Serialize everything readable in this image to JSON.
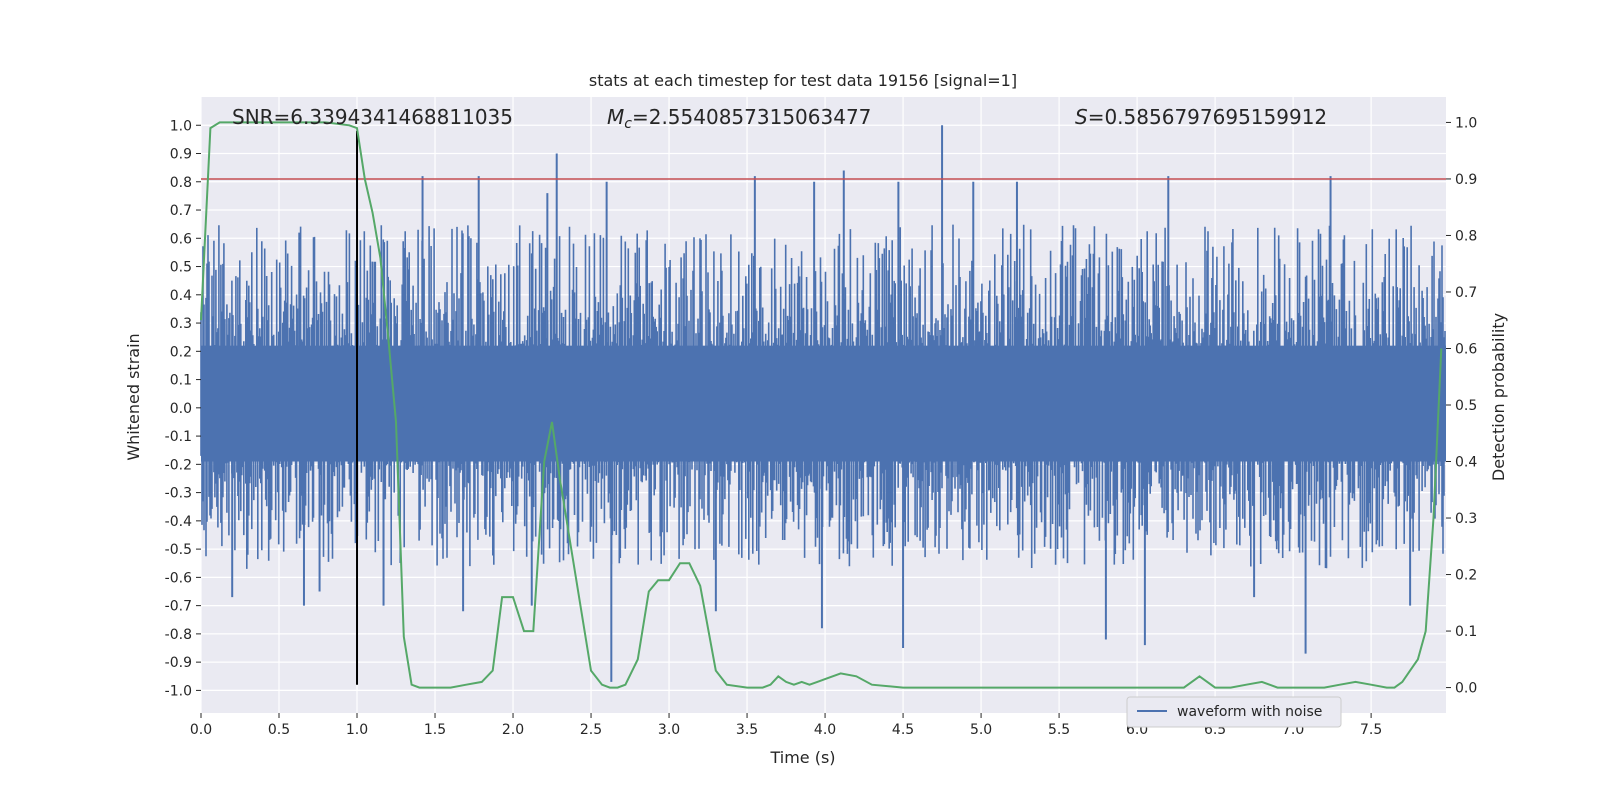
{
  "chart_data": {
    "type": "line",
    "title": "stats at each timestep for test data 19156 [signal=1]",
    "xlabel": "Time (s)",
    "ylabel": "Whitened strain",
    "ylabel_right": "Detection probability",
    "xlim": [
      0.0,
      7.98
    ],
    "ylim": [
      -1.08,
      1.1
    ],
    "ylim_right": [
      -0.045,
      1.045
    ],
    "x_ticks": [
      "0.0",
      "0.5",
      "1.0",
      "1.5",
      "2.0",
      "2.5",
      "3.0",
      "3.5",
      "4.0",
      "4.5",
      "5.0",
      "5.5",
      "6.0",
      "6.5",
      "7.0",
      "7.5"
    ],
    "y_ticks": [
      "-1.0",
      "-0.9",
      "-0.8",
      "-0.7",
      "-0.6",
      "-0.5",
      "-0.4",
      "-0.3",
      "-0.2",
      "-0.1",
      "0.0",
      "0.1",
      "0.2",
      "0.3",
      "0.4",
      "0.5",
      "0.6",
      "0.7",
      "0.8",
      "0.9",
      "1.0"
    ],
    "y_ticks_right": [
      "0.0",
      "0.1",
      "0.2",
      "0.3",
      "0.4",
      "0.5",
      "0.6",
      "0.7",
      "0.8",
      "0.9",
      "1.0"
    ],
    "grid": true,
    "legend_position": "lower-right",
    "annotations": {
      "snr": "SNR=6.3394341468811035",
      "mc_symbol": "M",
      "mc_subscript": "c",
      "mc_value": "=2.5540857315063477",
      "s_symbol": "S",
      "s_value": "=0.5856797695159912"
    },
    "threshold": {
      "y_right": 0.9,
      "color": "#c44e52"
    },
    "marker_line": {
      "x": 1.0,
      "color": "#000000"
    },
    "series": [
      {
        "name": "waveform with noise",
        "axis": "left",
        "color": "#4c72b0",
        "description_values": "dense whitened-strain noise, mostly within -0.4..0.45, peaks up to 1.0 near t=4.75 and down to -0.97 near t=2.63",
        "spikes": [
          [
            0.63,
            0.62
          ],
          [
            1.42,
            0.82
          ],
          [
            1.78,
            0.82
          ],
          [
            2.22,
            0.76
          ],
          [
            2.28,
            0.9
          ],
          [
            2.6,
            0.8
          ],
          [
            3.55,
            0.82
          ],
          [
            3.93,
            0.8
          ],
          [
            4.12,
            0.84
          ],
          [
            4.47,
            0.8
          ],
          [
            4.75,
            1.0
          ],
          [
            4.95,
            0.8
          ],
          [
            5.23,
            0.8
          ],
          [
            6.2,
            0.82
          ],
          [
            7.24,
            0.82
          ],
          [
            0.2,
            -0.67
          ],
          [
            0.66,
            -0.7
          ],
          [
            0.76,
            -0.65
          ],
          [
            1.17,
            -0.7
          ],
          [
            1.68,
            -0.72
          ],
          [
            2.12,
            -0.7
          ],
          [
            2.63,
            -0.97
          ],
          [
            3.3,
            -0.72
          ],
          [
            3.98,
            -0.78
          ],
          [
            4.5,
            -0.85
          ],
          [
            5.8,
            -0.82
          ],
          [
            6.05,
            -0.84
          ],
          [
            6.75,
            -0.67
          ],
          [
            7.08,
            -0.87
          ],
          [
            7.75,
            -0.7
          ]
        ]
      },
      {
        "name": "",
        "axis": "right",
        "color": "#55a868",
        "x": [
          0.0,
          0.06,
          0.12,
          0.3,
          0.6,
          0.8,
          0.95,
          1.0,
          1.05,
          1.1,
          1.15,
          1.2,
          1.25,
          1.3,
          1.35,
          1.4,
          1.5,
          1.6,
          1.7,
          1.8,
          1.87,
          1.93,
          2.0,
          2.07,
          2.13,
          2.2,
          2.25,
          2.3,
          2.4,
          2.5,
          2.57,
          2.62,
          2.67,
          2.72,
          2.8,
          2.87,
          2.93,
          3.0,
          3.07,
          3.13,
          3.2,
          3.3,
          3.37,
          3.5,
          3.6,
          3.65,
          3.7,
          3.75,
          3.8,
          3.85,
          3.9,
          3.95,
          4.0,
          4.1,
          4.2,
          4.3,
          4.5,
          4.8,
          5.0,
          5.2,
          5.4,
          5.6,
          5.8,
          6.0,
          6.2,
          6.3,
          6.4,
          6.5,
          6.6,
          6.7,
          6.8,
          6.9,
          7.0,
          7.1,
          7.2,
          7.3,
          7.4,
          7.5,
          7.6,
          7.65,
          7.7,
          7.75,
          7.8,
          7.85,
          7.9,
          7.95
        ],
        "y": [
          0.65,
          0.99,
          1.0,
          1.0,
          1.0,
          1.0,
          0.995,
          0.99,
          0.9,
          0.84,
          0.76,
          0.62,
          0.47,
          0.09,
          0.005,
          0.0,
          0.0,
          0.0,
          0.005,
          0.01,
          0.03,
          0.16,
          0.16,
          0.1,
          0.1,
          0.4,
          0.47,
          0.37,
          0.2,
          0.03,
          0.005,
          0.0,
          0.0,
          0.005,
          0.05,
          0.17,
          0.19,
          0.19,
          0.22,
          0.22,
          0.18,
          0.03,
          0.005,
          0.0,
          0.0,
          0.005,
          0.02,
          0.01,
          0.005,
          0.01,
          0.005,
          0.01,
          0.015,
          0.025,
          0.02,
          0.005,
          0.0,
          0.0,
          0.0,
          0.0,
          0.0,
          0.0,
          0.0,
          0.0,
          0.0,
          0.0,
          0.02,
          0.0,
          0.0,
          0.005,
          0.01,
          0.0,
          0.0,
          0.0,
          0.0,
          0.005,
          0.01,
          0.005,
          0.0,
          0.0,
          0.01,
          0.03,
          0.05,
          0.1,
          0.3,
          0.6
        ]
      }
    ]
  }
}
